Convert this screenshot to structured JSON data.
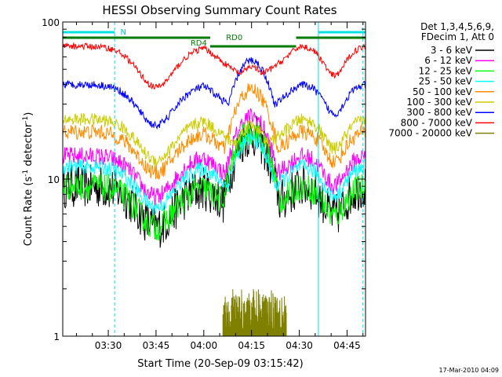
{
  "chart_data": {
    "type": "line",
    "title": "HESSI Observing Summary Count Rates",
    "xlabel": "Start Time (20-Sep-09 03:15:42)",
    "ylabel_main": "Count Rate (s",
    "ylabel_sup": "-1",
    "ylabel_rest": " detector",
    "ylabel_end": ")",
    "yscale": "log",
    "ylim": [
      1,
      100
    ],
    "xlim_minutes": [
      15.7,
      110.8
    ],
    "x_ticks": [
      {
        "label": "03:30",
        "m": 30
      },
      {
        "label": "03:45",
        "m": 45
      },
      {
        "label": "04:00",
        "m": 60
      },
      {
        "label": "04:15",
        "m": 75
      },
      {
        "label": "04:30",
        "m": 90
      },
      {
        "label": "04:45",
        "m": 105
      }
    ],
    "y_ticks": [
      {
        "label": "1",
        "v": 1
      },
      {
        "label": "10",
        "v": 10
      },
      {
        "label": "100",
        "v": 100
      }
    ],
    "legend_header": [
      "Det 1,3,4,5,6,9,",
      "FDecim 1, Att 0"
    ],
    "legend_position": "right",
    "series": [
      {
        "name": "3 - 6 keV",
        "color": "#000000",
        "base": 9.0,
        "peak": 19,
        "noise": 0.14
      },
      {
        "name": "6 - 12 keV",
        "color": "#ff00ff",
        "base": 14.0,
        "peak": 25,
        "noise": 0.06
      },
      {
        "name": "12 - 25 keV",
        "color": "#00ff00",
        "base": 9.0,
        "peak": 20,
        "noise": 0.09
      },
      {
        "name": "25 - 50 keV",
        "color": "#00ffff",
        "base": 12.0,
        "peak": 18,
        "noise": 0.05
      },
      {
        "name": "50 - 100 keV",
        "color": "#ff8c00",
        "base": 20.0,
        "peak": 37,
        "noise": 0.05
      },
      {
        "name": "100 - 300 keV",
        "color": "#cccc00",
        "base": 24.0,
        "peak": 22,
        "noise": 0.04
      },
      {
        "name": "300 - 800 keV",
        "color": "#0000ff",
        "base": 40.0,
        "peak": 57,
        "noise": 0.025
      },
      {
        "name": "800 - 7000 keV",
        "color": "#ff0000",
        "base": 70.0,
        "peak": 52,
        "noise": 0.02
      },
      {
        "name": "7000 - 20000 keV",
        "color": "#808000",
        "base": 0,
        "peak": 2.0,
        "noise": 0.25
      }
    ],
    "annotations": {
      "night_label": "N",
      "rd_labels": [
        {
          "label": "RD4",
          "m": 61
        },
        {
          "label": "RD0",
          "m": 67
        }
      ],
      "eclipse_markers": [
        {
          "m": 15.7,
          "style": "solid"
        },
        {
          "m": 32,
          "style": "dashed"
        },
        {
          "m": 96,
          "style": "solid"
        },
        {
          "m": 110,
          "style": "dashed"
        }
      ]
    },
    "timestamp": "17-Mar-2010 04:09"
  }
}
